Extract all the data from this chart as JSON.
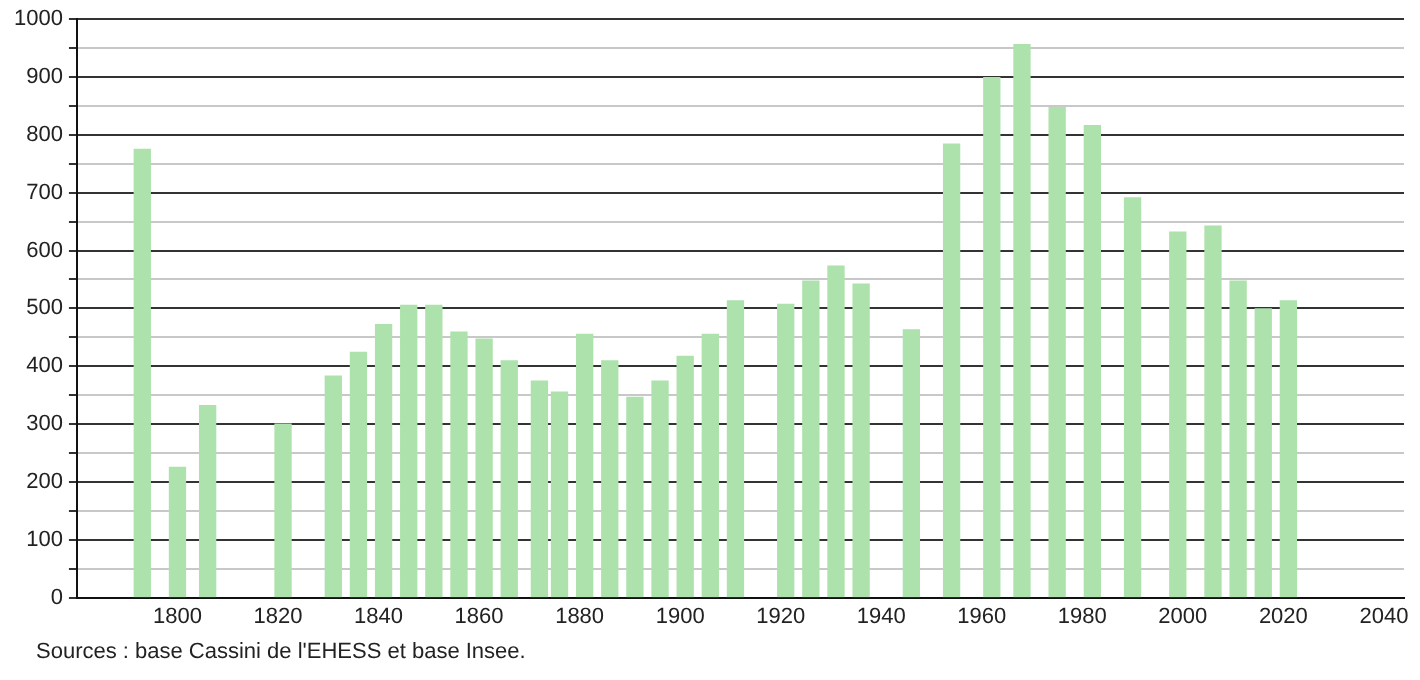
{
  "chart_data": {
    "type": "bar",
    "x": [
      1793,
      1800,
      1806,
      1821,
      1831,
      1836,
      1841,
      1846,
      1851,
      1856,
      1861,
      1866,
      1872,
      1876,
      1881,
      1886,
      1891,
      1896,
      1901,
      1906,
      1911,
      1921,
      1926,
      1931,
      1936,
      1946,
      1954,
      1962,
      1968,
      1975,
      1982,
      1990,
      1999,
      2006,
      2011,
      2016,
      2021
    ],
    "values": [
      775,
      225,
      332,
      300,
      383,
      424,
      472,
      505,
      505,
      459,
      447,
      409,
      374,
      355,
      455,
      409,
      346,
      374,
      417,
      455,
      513,
      507,
      547,
      573,
      542,
      463,
      784,
      899,
      956,
      847,
      816,
      691,
      632,
      642,
      547,
      499,
      513
    ],
    "color": "#ade2ad",
    "xlim": [
      1780,
      2044
    ],
    "xticks": [
      1800,
      1820,
      1840,
      1860,
      1880,
      1900,
      1920,
      1940,
      1960,
      1980,
      2000,
      2020,
      2040
    ],
    "ylim": [
      0,
      1000
    ],
    "yticks": [
      0,
      {
        "value": 50,
        "label": null
      },
      100,
      {
        "value": 150,
        "label": null
      },
      200,
      {
        "value": 250,
        "label": null
      },
      300,
      {
        "value": 350,
        "label": null
      },
      400,
      {
        "value": 450,
        "label": null
      },
      500,
      {
        "value": 550,
        "label": null
      },
      600,
      {
        "value": 650,
        "label": null
      },
      700,
      {
        "value": 750,
        "label": null
      },
      800,
      {
        "value": 850,
        "label": null
      },
      900,
      {
        "value": 950,
        "label": null
      },
      1000
    ],
    "grid": "y",
    "annotations": [
      "Sources : base Cassini de l'EHESS et base Insee."
    ]
  }
}
